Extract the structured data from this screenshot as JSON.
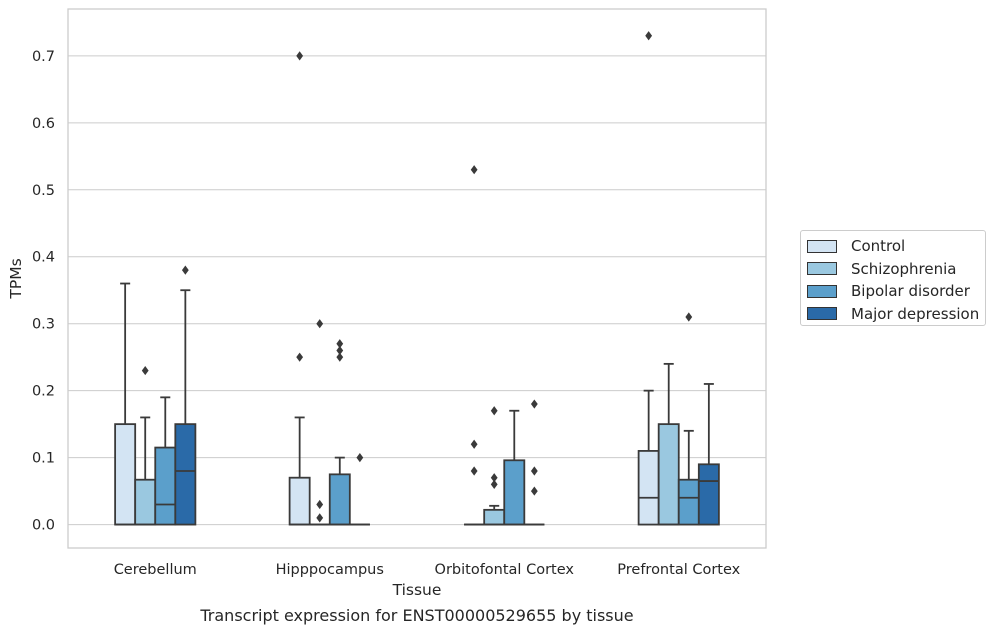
{
  "chart_data": {
    "type": "box",
    "title": "",
    "xlabel": "Tissue",
    "ylabel": "TPMs",
    "caption": "Transcript expression for ENST00000529655 by tissue",
    "categories": [
      "Cerebellum",
      "Hipppocampus",
      "Orbitofontal Cortex",
      "Prefrontal Cortex"
    ],
    "ylim": [
      -0.035,
      0.77
    ],
    "yticks": [
      0.0,
      0.1,
      0.2,
      0.3,
      0.4,
      0.5,
      0.6,
      0.7
    ],
    "grid": "horizontal",
    "legend_position": "right",
    "series": [
      {
        "name": "Control",
        "color": "#d3e4f3",
        "boxes": [
          {
            "q1": 0.0,
            "median": 0.0,
            "q3": 0.15,
            "whisker_low": 0.0,
            "whisker_high": 0.36,
            "outliers": []
          },
          {
            "q1": 0.0,
            "median": 0.0,
            "q3": 0.07,
            "whisker_low": 0.0,
            "whisker_high": 0.16,
            "outliers": [
              0.25,
              0.7
            ]
          },
          {
            "q1": 0.0,
            "median": 0.0,
            "q3": 0.0,
            "whisker_low": 0.0,
            "whisker_high": 0.0,
            "outliers": [
              0.08,
              0.12,
              0.53
            ]
          },
          {
            "q1": 0.0,
            "median": 0.04,
            "q3": 0.11,
            "whisker_low": 0.0,
            "whisker_high": 0.2,
            "outliers": [
              0.73
            ]
          }
        ]
      },
      {
        "name": "Schizophrenia",
        "color": "#9ac8e0",
        "boxes": [
          {
            "q1": 0.0,
            "median": 0.0,
            "q3": 0.067,
            "whisker_low": 0.0,
            "whisker_high": 0.16,
            "outliers": [
              0.23
            ]
          },
          {
            "q1": 0.0,
            "median": 0.0,
            "q3": 0.0,
            "whisker_low": 0.0,
            "whisker_high": 0.0,
            "outliers": [
              0.01,
              0.03,
              0.3
            ]
          },
          {
            "q1": 0.0,
            "median": 0.0,
            "q3": 0.022,
            "whisker_low": 0.0,
            "whisker_high": 0.028,
            "outliers": [
              0.06,
              0.07,
              0.17
            ]
          },
          {
            "q1": 0.0,
            "median": 0.0,
            "q3": 0.15,
            "whisker_low": 0.0,
            "whisker_high": 0.24,
            "outliers": []
          }
        ]
      },
      {
        "name": "Bipolar disorder",
        "color": "#5b9fcb",
        "boxes": [
          {
            "q1": 0.0,
            "median": 0.03,
            "q3": 0.115,
            "whisker_low": 0.0,
            "whisker_high": 0.19,
            "outliers": []
          },
          {
            "q1": 0.0,
            "median": 0.0,
            "q3": 0.075,
            "whisker_low": 0.0,
            "whisker_high": 0.1,
            "outliers": [
              0.25,
              0.26,
              0.27
            ]
          },
          {
            "q1": 0.0,
            "median": 0.0,
            "q3": 0.096,
            "whisker_low": 0.0,
            "whisker_high": 0.17,
            "outliers": []
          },
          {
            "q1": 0.0,
            "median": 0.04,
            "q3": 0.067,
            "whisker_low": 0.0,
            "whisker_high": 0.14,
            "outliers": [
              0.31
            ]
          }
        ]
      },
      {
        "name": "Major depression",
        "color": "#2a6aa8",
        "boxes": [
          {
            "q1": 0.0,
            "median": 0.08,
            "q3": 0.15,
            "whisker_low": 0.0,
            "whisker_high": 0.35,
            "outliers": [
              0.38
            ]
          },
          {
            "q1": 0.0,
            "median": 0.0,
            "q3": 0.0,
            "whisker_low": 0.0,
            "whisker_high": 0.0,
            "outliers": [
              0.1
            ]
          },
          {
            "q1": 0.0,
            "median": 0.0,
            "q3": 0.0,
            "whisker_low": 0.0,
            "whisker_high": 0.0,
            "outliers": [
              0.05,
              0.08,
              0.18
            ]
          },
          {
            "q1": 0.0,
            "median": 0.065,
            "q3": 0.09,
            "whisker_low": 0.0,
            "whisker_high": 0.21,
            "outliers": []
          }
        ]
      }
    ]
  }
}
